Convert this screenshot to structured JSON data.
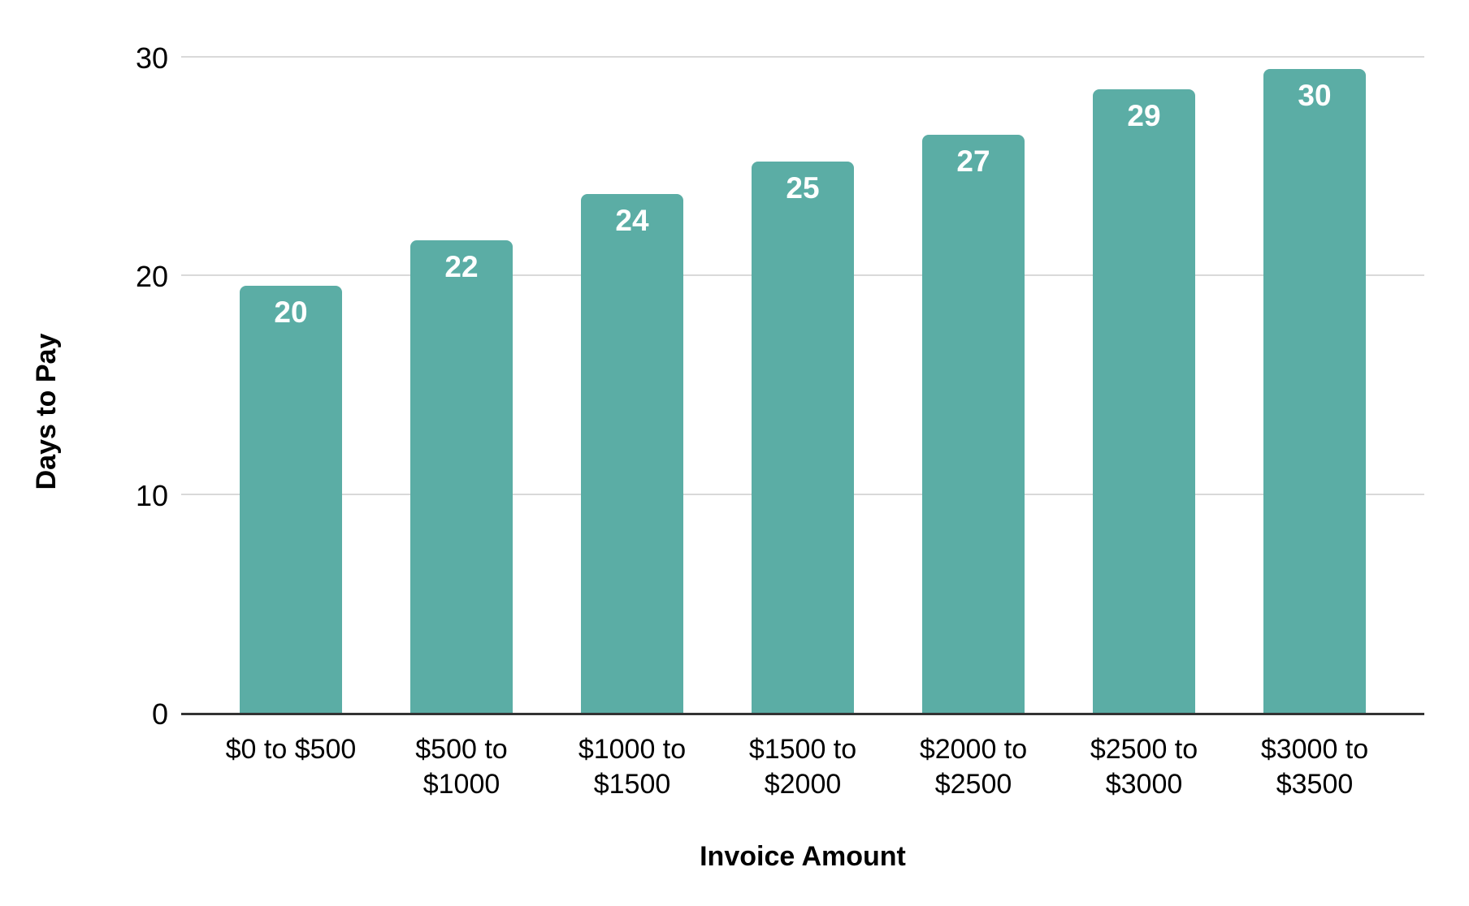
{
  "chart_data": {
    "type": "bar",
    "title": "",
    "xlabel": "Invoice Amount",
    "ylabel": "Days to Pay",
    "categories": [
      "$0 to $500",
      "$500 to $1000",
      "$1000 to $1500",
      "$1500 to $2000",
      "$2000 to $2500",
      "$2500 to $3000",
      "$3000 to $3500"
    ],
    "categories_display": [
      [
        "$0 to $500"
      ],
      [
        "$500 to",
        "$1000"
      ],
      [
        "$1000 to",
        "$1500"
      ],
      [
        "$1500 to",
        "$2000"
      ],
      [
        "$2000 to",
        "$2500"
      ],
      [
        "$2500 to",
        "$3000"
      ],
      [
        "$3000 to",
        "$3500"
      ]
    ],
    "series": [
      {
        "name": "Days to Pay",
        "values": [
          19.6,
          21.7,
          23.8,
          25.3,
          26.5,
          28.6,
          29.5
        ],
        "data_labels": [
          "20",
          "22",
          "24",
          "25",
          "27",
          "29",
          "30"
        ]
      }
    ],
    "y_ticks": [
      0,
      10,
      20,
      30
    ],
    "y_tick_labels": [
      "0",
      "10",
      "20",
      "30"
    ],
    "ylim": [
      0,
      30
    ],
    "grid": true,
    "legend_position": "none",
    "colors": {
      "bar": "#5bada5",
      "bar_label": "#ffffff",
      "gridline": "#d9d9d9",
      "axis_line": "#333333",
      "text": "#000000",
      "background": "#ffffff"
    }
  }
}
